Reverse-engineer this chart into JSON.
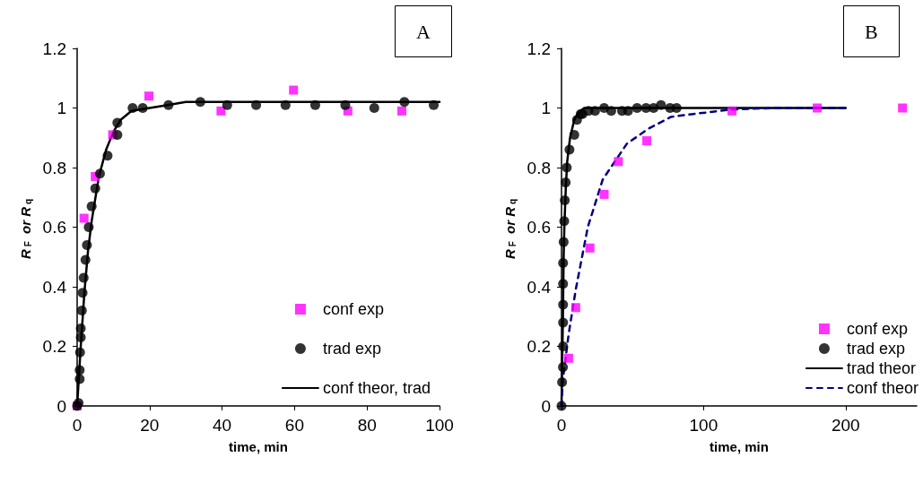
{
  "chart_data": [
    {
      "type": "scatter",
      "title": "A",
      "xlabel": "time, min",
      "ylabel": "R$_{F}$ or R$_{q}$",
      "xlim": [
        0,
        100
      ],
      "xticks": [
        0,
        20,
        40,
        60,
        80,
        100
      ],
      "ylim": [
        0,
        1.2
      ],
      "yticks": [
        0,
        0.2,
        0.4,
        0.6,
        0.8,
        1,
        1.2
      ],
      "grid": false,
      "legend": "bottom right",
      "series": [
        {
          "name": "conf exp",
          "type": "scatter",
          "marker": "square",
          "color": "#ff00ff",
          "x": [
            0,
            1.9,
            5,
            9.8,
            19.8,
            39.7,
            59.7,
            74.7,
            89.6
          ],
          "values": [
            0,
            0.63,
            0.77,
            0.91,
            1.04,
            0.99,
            1.06,
            0.99,
            0.99
          ]
        },
        {
          "name": "trad exp",
          "type": "scatter",
          "marker": "circle",
          "color": "#000000",
          "x": [
            0,
            0.4,
            0.7,
            0.7,
            0.8,
            1,
            1,
            1.3,
            1.5,
            1.8,
            2.3,
            2.7,
            3.2,
            4,
            5,
            6.3,
            8.4,
            11.1,
            11.1,
            15.3,
            18.1,
            25.2,
            34,
            41.4,
            49.4,
            57.5,
            65.7,
            74,
            82,
            90.3,
            98.4
          ],
          "values": [
            0,
            0.01,
            0.09,
            0.12,
            0.18,
            0.23,
            0.26,
            0.32,
            0.38,
            0.43,
            0.49,
            0.54,
            0.6,
            0.67,
            0.73,
            0.78,
            0.84,
            0.91,
            0.95,
            1,
            1,
            1.01,
            1.02,
            1.01,
            1.01,
            1.01,
            1.01,
            1.01,
            1,
            1.02,
            1.01
          ]
        },
        {
          "name": "conf theor, trad",
          "type": "line",
          "marker": "none",
          "line_style": "solid",
          "color": "#000000",
          "x": [
            0,
            1,
            2,
            3,
            4,
            6,
            8,
            10,
            12,
            15,
            20,
            25,
            30,
            100
          ],
          "values": [
            0,
            0.2,
            0.38,
            0.52,
            0.62,
            0.77,
            0.86,
            0.92,
            0.96,
            0.99,
            1,
            1.01,
            1.02,
            1.02
          ]
        }
      ]
    },
    {
      "type": "scatter",
      "title": "B",
      "xlabel": "time, min",
      "ylabel": "R$_{F}$ or R$_{q}$",
      "xlim": [
        0,
        250
      ],
      "xticks": [
        0,
        100,
        200
      ],
      "ylim": [
        0,
        1.2
      ],
      "yticks": [
        0,
        0.2,
        0.4,
        0.6,
        0.8,
        1,
        1.2
      ],
      "grid": false,
      "legend": "bottom right",
      "series": [
        {
          "name": "conf exp",
          "type": "scatter",
          "marker": "square",
          "color": "#ff00ff",
          "x": [
            5,
            10,
            20,
            30,
            40,
            60,
            120,
            180,
            240
          ],
          "values": [
            0.16,
            0.33,
            0.53,
            0.71,
            0.82,
            0.89,
            0.99,
            1,
            1
          ]
        },
        {
          "name": "trad exp",
          "type": "scatter",
          "marker": "circle",
          "color": "#000000",
          "x": [
            0,
            0.4,
            1,
            1.1,
            1.1,
            1.1,
            1.1,
            1.1,
            1.5,
            1.9,
            2.3,
            2.9,
            3.7,
            5.6,
            9,
            10.9,
            13.5,
            14.8,
            19,
            23.6,
            30,
            35,
            42.6,
            46.8,
            53.2,
            59.5,
            64.8,
            70,
            76.4,
            81
          ],
          "values": [
            0,
            0.08,
            0.13,
            0.2,
            0.28,
            0.34,
            0.41,
            0.48,
            0.55,
            0.62,
            0.69,
            0.75,
            0.8,
            0.86,
            0.91,
            0.96,
            0.98,
            0.98,
            0.99,
            0.99,
            1,
            0.99,
            0.99,
            0.99,
            1,
            1,
            1,
            1.01,
            1,
            1
          ]
        },
        {
          "name": "trad theor",
          "type": "line",
          "marker": "none",
          "line_style": "solid",
          "color": "#000000",
          "x": [
            0,
            1,
            1.5,
            2,
            3,
            4,
            6,
            9,
            12,
            16,
            200
          ],
          "values": [
            0,
            0.3,
            0.5,
            0.6,
            0.73,
            0.82,
            0.9,
            0.96,
            0.985,
            1,
            1
          ]
        },
        {
          "name": "conf theor",
          "type": "line",
          "marker": "none",
          "line_style": "dashed",
          "color": "#000080",
          "x": [
            0,
            1,
            5,
            10,
            18.5,
            29,
            46,
            61,
            77,
            93,
            120,
            150,
            200
          ],
          "values": [
            0,
            0.09,
            0.24,
            0.39,
            0.6,
            0.76,
            0.88,
            0.93,
            0.97,
            0.98,
            0.995,
            1,
            1
          ]
        }
      ]
    }
  ]
}
